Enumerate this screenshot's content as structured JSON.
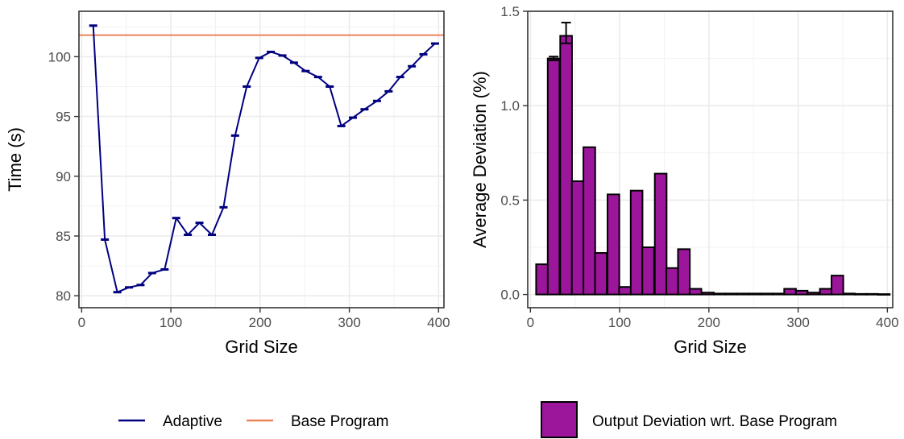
{
  "chart_data": [
    {
      "type": "line",
      "xlabel": "Grid Size",
      "ylabel": "Time (s)",
      "xlim": [
        -3,
        406
      ],
      "ylim": [
        79,
        103.8
      ],
      "x_ticks": [
        0,
        100,
        200,
        300,
        400
      ],
      "y_ticks": [
        80,
        85,
        90,
        95,
        100
      ],
      "grid": true,
      "legend_position": "bottom",
      "series": [
        {
          "name": "Adaptive",
          "color": "#000080",
          "x": [
            13,
            26,
            40,
            53,
            66,
            79,
            93,
            106,
            119,
            132,
            146,
            159,
            172,
            185,
            199,
            212,
            225,
            238,
            251,
            265,
            278,
            291,
            304,
            317,
            331,
            344,
            357,
            370,
            383,
            396
          ],
          "y": [
            102.6,
            84.7,
            80.3,
            80.7,
            80.9,
            81.9,
            82.2,
            86.5,
            85.1,
            86.1,
            85.1,
            87.4,
            93.4,
            97.5,
            99.9,
            100.4,
            100.1,
            99.5,
            98.8,
            98.3,
            97.5,
            94.2,
            94.9,
            95.6,
            96.3,
            97.1,
            98.3,
            99.2,
            100.2,
            101.1
          ],
          "error_bar_width": 10
        },
        {
          "name": "Base Program",
          "color": "#E8845A",
          "y_constant": 101.8
        }
      ],
      "legend": [
        "Adaptive",
        "Base Program"
      ]
    },
    {
      "type": "bar",
      "xlabel": "Grid Size",
      "ylabel": "Average Deviation (%)",
      "xlim": [
        -3,
        406
      ],
      "ylim": [
        -0.07,
        1.5
      ],
      "x_ticks": [
        0,
        100,
        200,
        300,
        400
      ],
      "y_ticks": [
        0.0,
        0.5,
        1.0,
        1.5
      ],
      "y_tick_labels": [
        "0.0",
        "0.5",
        "1.0",
        "1.5"
      ],
      "grid": true,
      "legend_position": "bottom",
      "bar_width": 13.2,
      "series": [
        {
          "name": "Output Deviation wrt. Base Program",
          "color": "#9C169C",
          "x": [
            13,
            26,
            40,
            53,
            66,
            79,
            93,
            106,
            119,
            132,
            146,
            159,
            172,
            185,
            199,
            212,
            225,
            238,
            251,
            265,
            278,
            291,
            304,
            317,
            331,
            344,
            357,
            370,
            383,
            396
          ],
          "values": [
            0.16,
            1.25,
            1.37,
            0.6,
            0.78,
            0.22,
            0.53,
            0.04,
            0.55,
            0.25,
            0.64,
            0.14,
            0.24,
            0.03,
            0.01,
            0.005,
            0.005,
            0.005,
            0.005,
            0.005,
            0.005,
            0.03,
            0.02,
            0.01,
            0.03,
            0.1,
            0.005,
            0.003,
            0.003,
            0.002
          ],
          "error_bars": [
            {
              "index": 1,
              "low": 1.24,
              "high": 1.26
            },
            {
              "index": 2,
              "low": 1.33,
              "high": 1.44
            }
          ]
        }
      ],
      "legend": [
        "Output Deviation wrt. Base Program"
      ]
    }
  ]
}
